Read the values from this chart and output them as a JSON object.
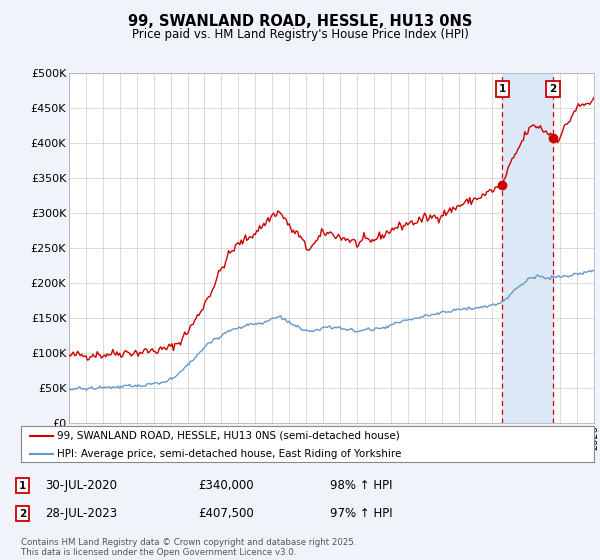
{
  "title": "99, SWANLAND ROAD, HESSLE, HU13 0NS",
  "subtitle": "Price paid vs. HM Land Registry's House Price Index (HPI)",
  "legend_line1": "99, SWANLAND ROAD, HESSLE, HU13 0NS (semi-detached house)",
  "legend_line2": "HPI: Average price, semi-detached house, East Riding of Yorkshire",
  "footnote": "Contains HM Land Registry data © Crown copyright and database right 2025.\nThis data is licensed under the Open Government Licence v3.0.",
  "sale1_label": "1",
  "sale1_date": "30-JUL-2020",
  "sale1_price": "£340,000",
  "sale1_hpi": "98% ↑ HPI",
  "sale1_year": 2020.58,
  "sale1_value": 340000,
  "sale2_label": "2",
  "sale2_date": "28-JUL-2023",
  "sale2_price": "£407,500",
  "sale2_hpi": "97% ↑ HPI",
  "sale2_year": 2023.58,
  "sale2_value": 407500,
  "xlim": [
    1995,
    2026
  ],
  "ylim": [
    0,
    500000
  ],
  "yticks": [
    0,
    50000,
    100000,
    150000,
    200000,
    250000,
    300000,
    350000,
    400000,
    450000,
    500000
  ],
  "ytick_labels": [
    "£0",
    "£50K",
    "£100K",
    "£150K",
    "£200K",
    "£250K",
    "£300K",
    "£350K",
    "£400K",
    "£450K",
    "£500K"
  ],
  "line_color_red": "#cc0000",
  "line_color_blue": "#6699cc",
  "vline_color": "#cc0000",
  "shade_color": "#dce8f5",
  "background_color": "#f0f4fa",
  "plot_bg_color": "#ffffff",
  "grid_color": "#cccccc"
}
